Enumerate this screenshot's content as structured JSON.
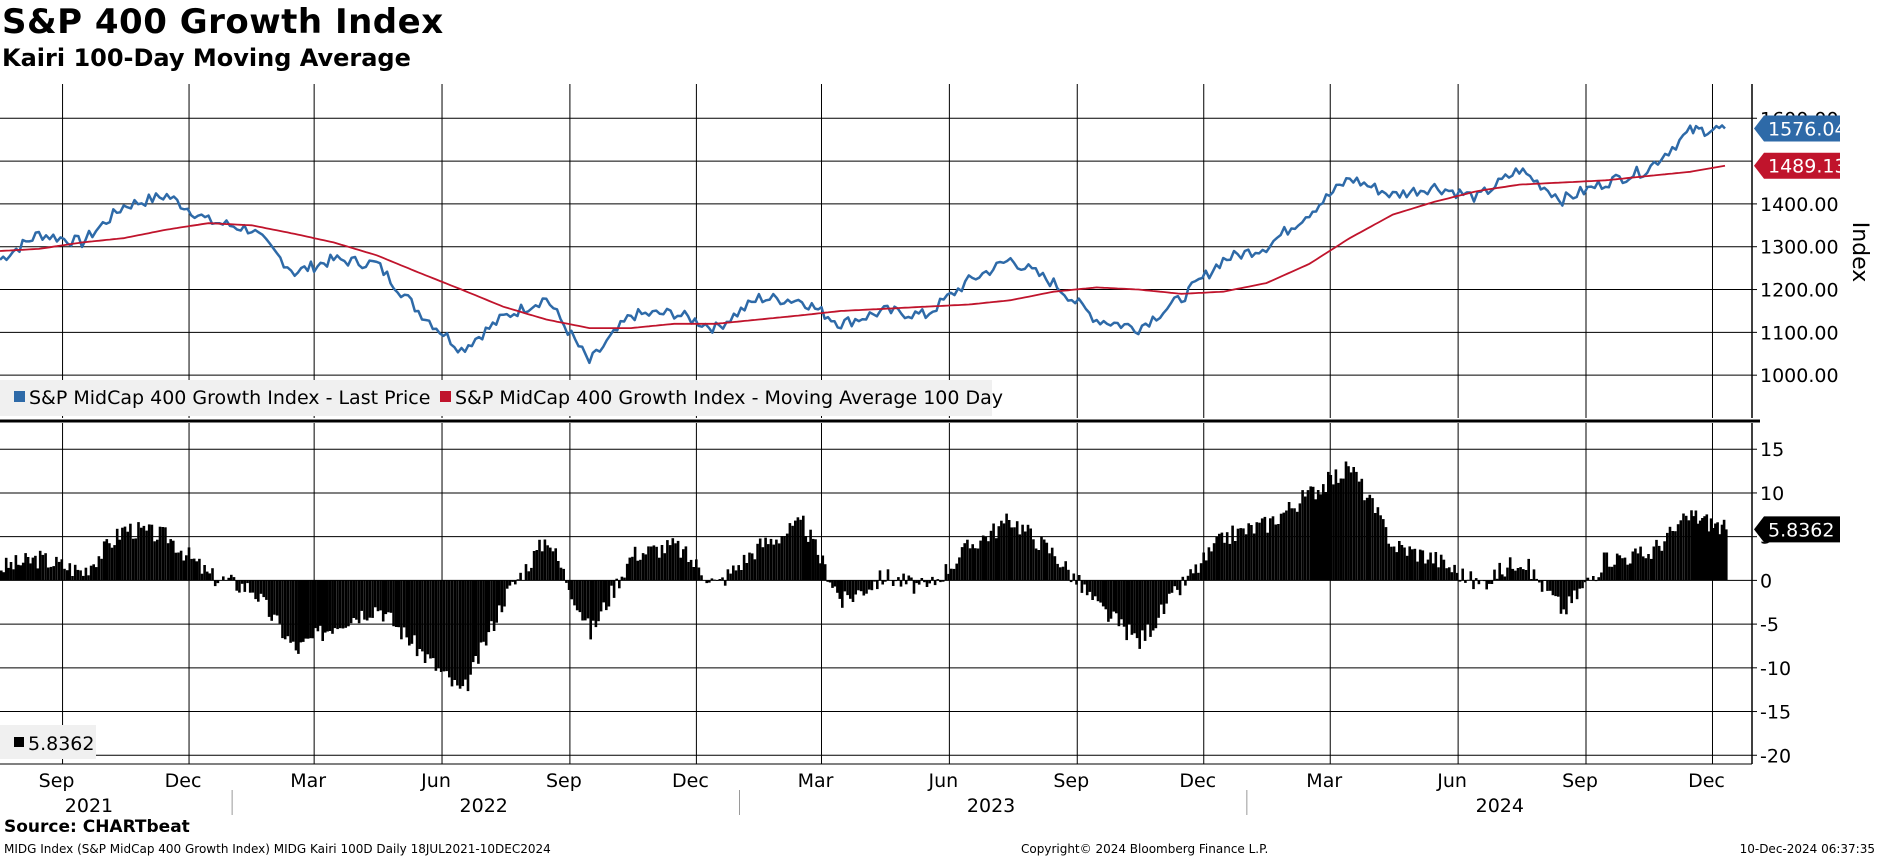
{
  "title": "S&P 400 Growth Index",
  "subtitle": "Kairi 100-Day Moving Average",
  "source": "Source: CHARTbeat",
  "footer": {
    "left": "MIDG Index (S&P MidCap 400 Growth Index) MIDG Kairi 100D  Daily 18JUL2021-10DEC2024",
    "center": "Copyright© 2024 Bloomberg Finance L.P.",
    "right": "10-Dec-2024 06:37:35"
  },
  "colors": {
    "price": "#2e6aa8",
    "moving_average": "#c0142c",
    "kairi": "#000000",
    "grid": "#000000"
  },
  "chart_data": [
    {
      "type": "line",
      "ylabel": "Index",
      "ylim": [
        900,
        1680
      ],
      "yticks": [
        "1000.00",
        "1100.00",
        "1200.00",
        "1300.00",
        "1400.00",
        "1600.00"
      ],
      "grid": true,
      "legend": "bottom-left",
      "x_dates": [
        "2021-07-18",
        "2021-08-15",
        "2021-09-15",
        "2021-10-15",
        "2021-11-15",
        "2021-12-15",
        "2022-01-15",
        "2022-02-15",
        "2022-03-15",
        "2022-04-15",
        "2022-05-15",
        "2022-06-15",
        "2022-07-15",
        "2022-08-15",
        "2022-09-15",
        "2022-10-15",
        "2022-11-15",
        "2022-12-15",
        "2023-01-15",
        "2023-02-15",
        "2023-03-15",
        "2023-04-15",
        "2023-05-15",
        "2023-06-15",
        "2023-07-15",
        "2023-08-15",
        "2023-09-15",
        "2023-10-15",
        "2023-11-15",
        "2023-12-15",
        "2024-01-15",
        "2024-02-15",
        "2024-03-15",
        "2024-04-15",
        "2024-05-15",
        "2024-06-15",
        "2024-07-15",
        "2024-08-15",
        "2024-09-15",
        "2024-10-15",
        "2024-11-15",
        "2024-12-10"
      ],
      "series": [
        {
          "name": "S&P MidCap 400 Growth Index - Last Price",
          "last_label": "1576.04",
          "values": [
            1270,
            1330,
            1310,
            1395,
            1420,
            1360,
            1340,
            1240,
            1270,
            1260,
            1150,
            1060,
            1135,
            1180,
            1030,
            1140,
            1145,
            1110,
            1180,
            1175,
            1120,
            1150,
            1140,
            1220,
            1270,
            1215,
            1130,
            1110,
            1180,
            1270,
            1300,
            1380,
            1460,
            1420,
            1440,
            1415,
            1480,
            1410,
            1450,
            1480,
            1570,
            1576.04
          ]
        },
        {
          "name": "S&P MidCap 400 Growth Index - Moving Average 100 Day",
          "last_label": "1489.13",
          "values": [
            1290,
            1295,
            1310,
            1320,
            1340,
            1355,
            1350,
            1330,
            1310,
            1280,
            1240,
            1200,
            1160,
            1130,
            1110,
            1110,
            1120,
            1120,
            1130,
            1140,
            1150,
            1155,
            1160,
            1165,
            1175,
            1195,
            1205,
            1200,
            1190,
            1195,
            1215,
            1260,
            1320,
            1375,
            1405,
            1430,
            1445,
            1450,
            1455,
            1465,
            1475,
            1489.13
          ]
        }
      ]
    },
    {
      "type": "bar",
      "ylim": [
        -21,
        18
      ],
      "yticks": [
        "15",
        "10",
        "5",
        "0",
        "-5",
        "-10",
        "-15",
        "-20"
      ],
      "grid": true,
      "legend": "bottom-left",
      "x_dates": [
        "2021-07-18",
        "2021-08-15",
        "2021-09-15",
        "2021-10-15",
        "2021-11-15",
        "2021-12-15",
        "2022-01-15",
        "2022-02-15",
        "2022-03-15",
        "2022-04-15",
        "2022-05-15",
        "2022-06-15",
        "2022-07-15",
        "2022-08-15",
        "2022-09-15",
        "2022-10-15",
        "2022-11-15",
        "2022-12-15",
        "2023-01-15",
        "2023-02-15",
        "2023-03-15",
        "2023-04-15",
        "2023-05-15",
        "2023-06-15",
        "2023-07-15",
        "2023-08-15",
        "2023-09-15",
        "2023-10-15",
        "2023-11-15",
        "2023-12-15",
        "2024-01-15",
        "2024-02-15",
        "2024-03-15",
        "2024-04-15",
        "2024-05-15",
        "2024-06-15",
        "2024-07-15",
        "2024-08-15",
        "2024-09-15",
        "2024-10-15",
        "2024-11-15",
        "2024-12-10"
      ],
      "series": [
        {
          "name": "",
          "last_label": "5.8362",
          "legend_label": "5.8362",
          "values": [
            1.5,
            2.5,
            1.0,
            6.0,
            5.0,
            0.5,
            -1.0,
            -8.0,
            -5.0,
            -3.0,
            -8.0,
            -13.0,
            -2.0,
            5.0,
            -6.0,
            3.0,
            4.0,
            -0.5,
            4.0,
            6.5,
            -2.5,
            0.5,
            -1.0,
            4.0,
            7.0,
            3.0,
            -3.0,
            -7.0,
            -0.5,
            5.0,
            6.5,
            10.0,
            13.0,
            4.0,
            2.5,
            -0.5,
            2.5,
            -3.5,
            2.5,
            3.0,
            7.5,
            5.8362
          ]
        }
      ]
    }
  ],
  "x_axis": {
    "months": [
      {
        "label": "Sep",
        "date": "2021-09-01"
      },
      {
        "label": "Dec",
        "date": "2021-12-01"
      },
      {
        "label": "Mar",
        "date": "2022-03-01"
      },
      {
        "label": "Jun",
        "date": "2022-06-01"
      },
      {
        "label": "Sep",
        "date": "2022-09-01"
      },
      {
        "label": "Dec",
        "date": "2022-12-01"
      },
      {
        "label": "Mar",
        "date": "2023-03-01"
      },
      {
        "label": "Jun",
        "date": "2023-06-01"
      },
      {
        "label": "Sep",
        "date": "2023-09-01"
      },
      {
        "label": "Dec",
        "date": "2023-12-01"
      },
      {
        "label": "Mar",
        "date": "2024-03-01"
      },
      {
        "label": "Jun",
        "date": "2024-06-01"
      },
      {
        "label": "Sep",
        "date": "2024-09-01"
      },
      {
        "label": "Dec",
        "date": "2024-12-01"
      }
    ],
    "years": [
      {
        "label": "2021",
        "date": "2021-09-20"
      },
      {
        "label": "2022",
        "date": "2022-07-01"
      },
      {
        "label": "2023",
        "date": "2023-07-01"
      },
      {
        "label": "2024",
        "date": "2024-07-01"
      }
    ],
    "year_separators": [
      "2022-01-01",
      "2023-01-01",
      "2024-01-01"
    ]
  }
}
